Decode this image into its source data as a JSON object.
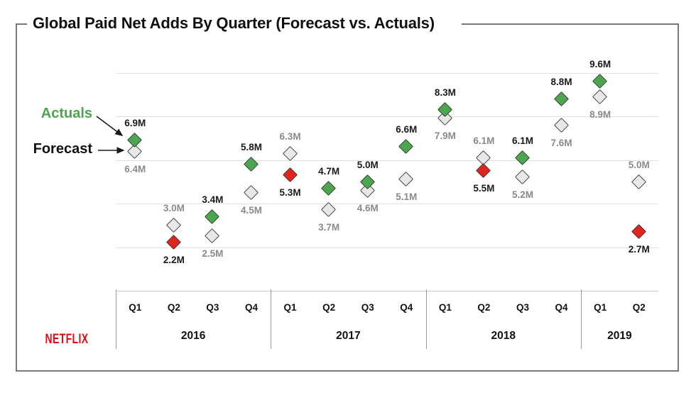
{
  "title": "Global Paid Net Adds By Quarter (Forecast vs. Actuals)",
  "legend": {
    "actuals_label": "Actuals",
    "forecast_label": "Forecast"
  },
  "branding": {
    "logo_text": "NETFLIX",
    "logo_color": "#E50914"
  },
  "colors": {
    "beat": "#4BA64F",
    "miss": "#E2251C",
    "forecast_fill": "#e8e8e8",
    "diamond_border": "#3d3d3d",
    "actual_label": "#1a1a1a",
    "forecast_label": "#8a8a8a",
    "actuals_legend_text": "#4BA64F"
  },
  "chart_data": {
    "type": "scatter",
    "unit": "M",
    "title": "Global Paid Net Adds By Quarter (Forecast vs. Actuals)",
    "ylim": [
      0,
      10.5
    ],
    "gridline_values": [
      0,
      2,
      4,
      6,
      8,
      10
    ],
    "legend_entries": [
      "Actuals",
      "Forecast"
    ],
    "groups": [
      {
        "year": "2016",
        "quarters": [
          "Q1",
          "Q2",
          "Q3",
          "Q4"
        ]
      },
      {
        "year": "2017",
        "quarters": [
          "Q1",
          "Q2",
          "Q3",
          "Q4"
        ]
      },
      {
        "year": "2018",
        "quarters": [
          "Q1",
          "Q2",
          "Q3",
          "Q4"
        ]
      },
      {
        "year": "2019",
        "quarters": [
          "Q1",
          "Q2"
        ]
      }
    ],
    "points": [
      {
        "year": "2016",
        "quarter": "Q1",
        "forecast": 6.4,
        "actual": 6.9,
        "result": "beat",
        "actual_label": "6.9M",
        "forecast_label": "6.4M"
      },
      {
        "year": "2016",
        "quarter": "Q2",
        "forecast": 3.0,
        "actual": 2.2,
        "result": "miss",
        "actual_label": "2.2M",
        "forecast_label": "3.0M"
      },
      {
        "year": "2016",
        "quarter": "Q3",
        "forecast": 2.5,
        "actual": 3.4,
        "result": "beat",
        "actual_label": "3.4M",
        "forecast_label": "2.5M"
      },
      {
        "year": "2016",
        "quarter": "Q4",
        "forecast": 4.5,
        "actual": 5.8,
        "result": "beat",
        "actual_label": "5.8M",
        "forecast_label": "4.5M"
      },
      {
        "year": "2017",
        "quarter": "Q1",
        "forecast": 6.3,
        "actual": 5.3,
        "result": "miss",
        "actual_label": "5.3M",
        "forecast_label": "6.3M"
      },
      {
        "year": "2017",
        "quarter": "Q2",
        "forecast": 3.7,
        "actual": 4.7,
        "result": "beat",
        "actual_label": "4.7M",
        "forecast_label": "3.7M"
      },
      {
        "year": "2017",
        "quarter": "Q3",
        "forecast": 4.6,
        "actual": 5.0,
        "result": "beat",
        "actual_label": "5.0M",
        "forecast_label": "4.6M"
      },
      {
        "year": "2017",
        "quarter": "Q4",
        "forecast": 5.1,
        "actual": 6.6,
        "result": "beat",
        "actual_label": "6.6M",
        "forecast_label": "5.1M"
      },
      {
        "year": "2018",
        "quarter": "Q1",
        "forecast": 7.9,
        "actual": 8.3,
        "result": "beat",
        "actual_label": "8.3M",
        "forecast_label": "7.9M"
      },
      {
        "year": "2018",
        "quarter": "Q2",
        "forecast": 6.1,
        "actual": 5.5,
        "result": "miss",
        "actual_label": "5.5M",
        "forecast_label": "6.1M"
      },
      {
        "year": "2018",
        "quarter": "Q3",
        "forecast": 5.2,
        "actual": 6.1,
        "result": "beat",
        "actual_label": "6.1M",
        "forecast_label": "5.2M"
      },
      {
        "year": "2018",
        "quarter": "Q4",
        "forecast": 7.6,
        "actual": 8.8,
        "result": "beat",
        "actual_label": "8.8M",
        "forecast_label": "7.6M"
      },
      {
        "year": "2019",
        "quarter": "Q1",
        "forecast": 8.9,
        "actual": 9.6,
        "result": "beat",
        "actual_label": "9.6M",
        "forecast_label": "8.9M"
      },
      {
        "year": "2019",
        "quarter": "Q2",
        "forecast": 5.0,
        "actual": 2.7,
        "result": "miss",
        "actual_label": "2.7M",
        "forecast_label": "5.0M"
      }
    ]
  }
}
